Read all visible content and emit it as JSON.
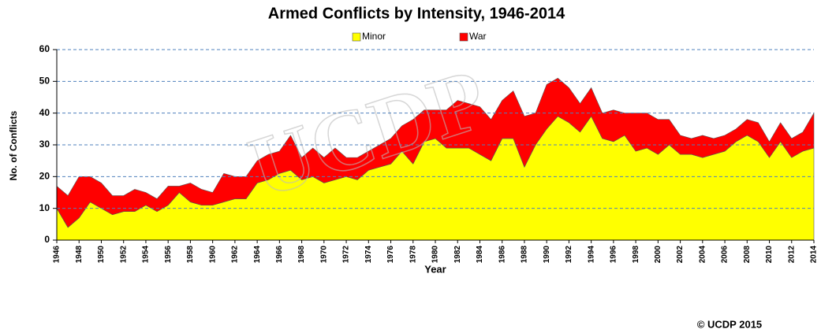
{
  "chart_data": {
    "type": "stacked_area",
    "title": "Armed Conflicts by Intensity, 1946-2014",
    "y_label": "No. of Conflicts",
    "x_label": "Year",
    "footer": "© UCDP 2015",
    "watermark": "UCDP",
    "x": [
      1946,
      1947,
      1948,
      1949,
      1950,
      1951,
      1952,
      1953,
      1954,
      1955,
      1956,
      1957,
      1958,
      1959,
      1960,
      1961,
      1962,
      1963,
      1964,
      1965,
      1966,
      1967,
      1968,
      1969,
      1970,
      1971,
      1972,
      1973,
      1974,
      1975,
      1976,
      1977,
      1978,
      1979,
      1980,
      1981,
      1982,
      1983,
      1984,
      1985,
      1986,
      1987,
      1988,
      1989,
      1990,
      1991,
      1992,
      1993,
      1994,
      1995,
      1996,
      1997,
      1998,
      1999,
      2000,
      2001,
      2002,
      2003,
      2004,
      2005,
      2006,
      2007,
      2008,
      2009,
      2010,
      2011,
      2012,
      2013,
      2014
    ],
    "series": [
      {
        "name": "Minor",
        "color": "#ffff00",
        "values": [
          10,
          4,
          7,
          12,
          10,
          8,
          9,
          9,
          11,
          9,
          11,
          15,
          12,
          11,
          11,
          12,
          13,
          13,
          18,
          19,
          21,
          22,
          19,
          20,
          18,
          19,
          20,
          19,
          22,
          23,
          24,
          28,
          24,
          31,
          32,
          29,
          29,
          29,
          27,
          25,
          32,
          32,
          23,
          30,
          35,
          39,
          37,
          34,
          39,
          32,
          31,
          33,
          28,
          29,
          27,
          30,
          27,
          27,
          26,
          27,
          28,
          31,
          33,
          31,
          26,
          31,
          26,
          28,
          29
        ]
      },
      {
        "name": "War",
        "color": "#ff0000",
        "values": [
          7,
          10,
          13,
          8,
          8,
          6,
          5,
          7,
          4,
          4,
          6,
          2,
          6,
          5,
          4,
          9,
          7,
          7,
          7,
          8,
          7,
          11,
          7,
          9,
          8,
          10,
          6,
          7,
          6,
          7,
          8,
          8,
          14,
          10,
          9,
          12,
          15,
          14,
          15,
          13,
          12,
          15,
          16,
          10,
          14,
          12,
          11,
          9,
          9,
          8,
          10,
          7,
          12,
          11,
          11,
          8,
          6,
          5,
          7,
          5,
          5,
          4,
          5,
          6,
          5,
          6,
          6,
          6,
          11
        ]
      }
    ],
    "xlim": [
      1946,
      2014
    ],
    "xticks": [
      1946,
      1948,
      1950,
      1952,
      1954,
      1956,
      1958,
      1960,
      1962,
      1964,
      1966,
      1968,
      1970,
      1972,
      1974,
      1976,
      1978,
      1980,
      1982,
      1984,
      1986,
      1988,
      1990,
      1992,
      1994,
      1996,
      1998,
      2000,
      2002,
      2004,
      2006,
      2008,
      2010,
      2012,
      2014
    ],
    "ylim": [
      0,
      60
    ],
    "yticks": [
      0,
      10,
      20,
      30,
      40,
      50,
      60
    ],
    "grid": true,
    "legend": "top"
  }
}
